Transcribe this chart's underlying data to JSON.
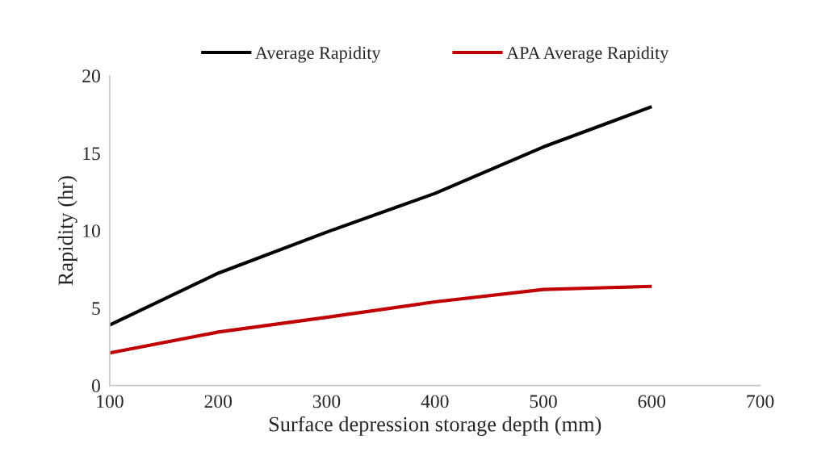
{
  "chart_data": {
    "type": "line",
    "xlabel": "Surface depression storage depth (mm)",
    "ylabel": "Rapidity (hr)",
    "x": [
      100,
      200,
      300,
      400,
      500,
      600
    ],
    "series": [
      {
        "name": "Average Rapidity",
        "color": "#000000",
        "values": [
          3.9,
          7.25,
          9.9,
          12.4,
          15.4,
          18.0
        ]
      },
      {
        "name": "APA Average Rapidity",
        "color": "#c00000",
        "values": [
          2.1,
          3.45,
          4.4,
          5.4,
          6.2,
          6.4
        ]
      }
    ],
    "xlim": [
      100,
      700
    ],
    "xticks": [
      100,
      200,
      300,
      400,
      500,
      600,
      700
    ],
    "ylim": [
      0,
      20
    ],
    "yticks": [
      0,
      5,
      10,
      15,
      20
    ],
    "grid": false,
    "legend": "top",
    "marker": "none",
    "line_style": "solid"
  }
}
